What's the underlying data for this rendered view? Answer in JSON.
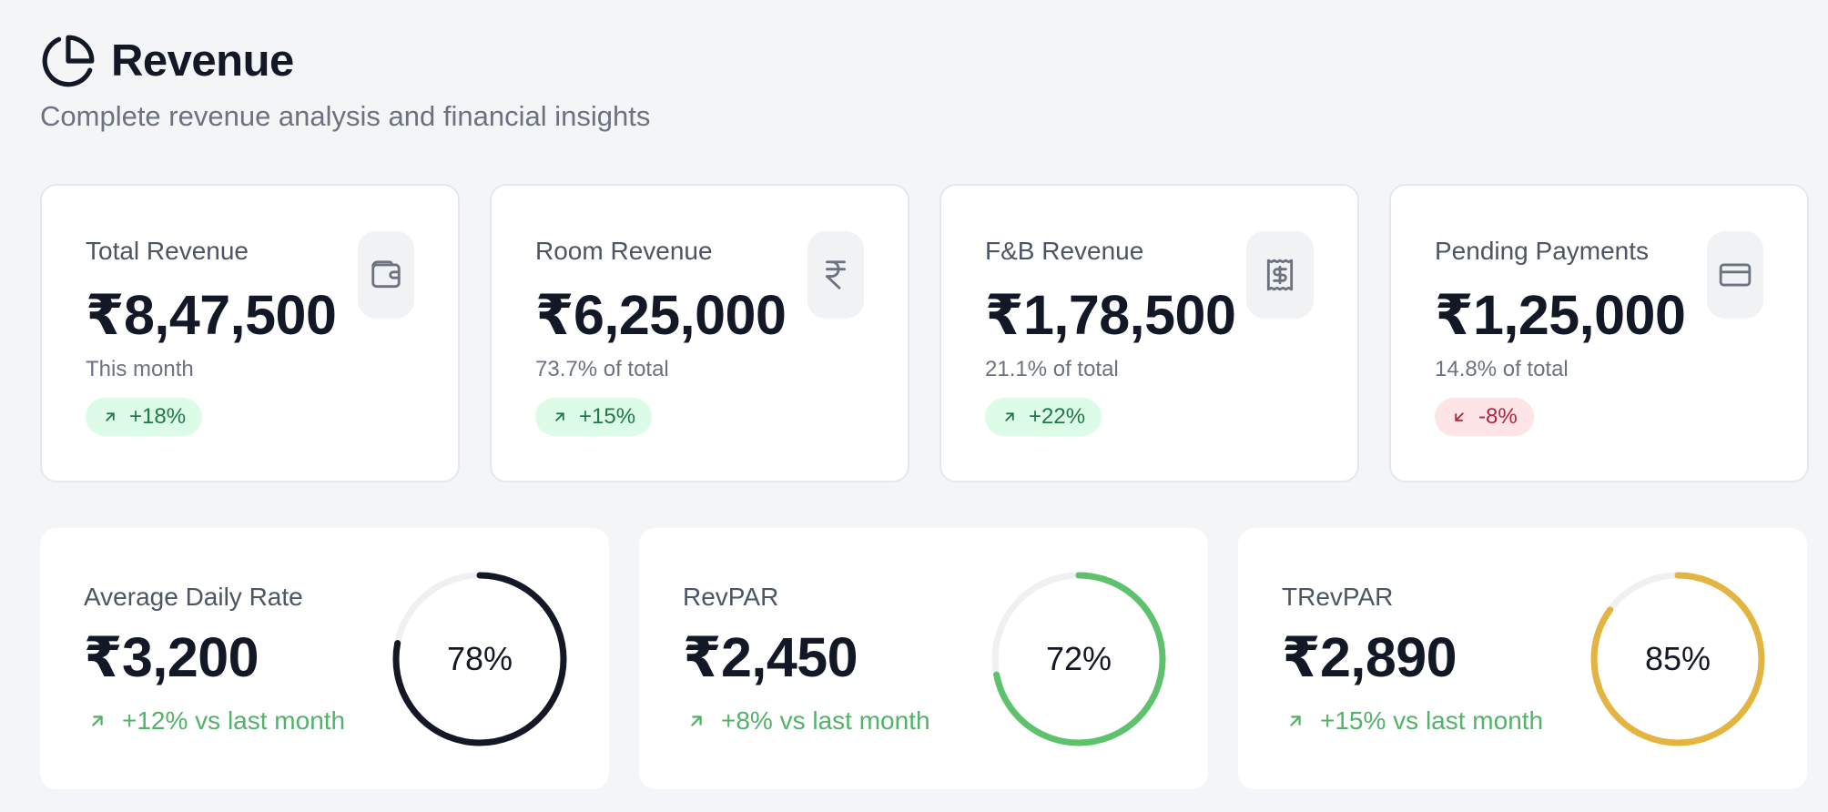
{
  "header": {
    "title": "Revenue",
    "subtitle": "Complete revenue analysis and financial insights",
    "icon": "pie-chart-icon"
  },
  "colors": {
    "up_bg": "#dcfce7",
    "up_text": "#1f7a45",
    "down_bg": "#fde4e6",
    "down_text": "#b4233a",
    "trend_green": "#52b26a"
  },
  "stats": [
    {
      "label": "Total Revenue",
      "value": "₹8,47,500",
      "note": "This month",
      "change": "+18%",
      "direction": "up",
      "icon": "wallet-icon"
    },
    {
      "label": "Room Revenue",
      "value": "₹6,25,000",
      "note": "73.7% of total",
      "change": "+15%",
      "direction": "up",
      "icon": "rupee-icon"
    },
    {
      "label": "F&B Revenue",
      "value": "₹1,78,500",
      "note": "21.1% of total",
      "change": "+22%",
      "direction": "up",
      "icon": "receipt-icon"
    },
    {
      "label": "Pending Payments",
      "value": "₹1,25,000",
      "note": "14.8% of total",
      "change": "-8%",
      "direction": "down",
      "icon": "credit-card-icon"
    }
  ],
  "metrics": [
    {
      "label": "Average Daily Rate",
      "value": "₹3,200",
      "trend": "+12% vs last month",
      "percent_label": "78%",
      "percent": 78,
      "ring_color": "#141826"
    },
    {
      "label": "RevPAR",
      "value": "₹2,450",
      "trend": "+8% vs last month",
      "percent_label": "72%",
      "percent": 72,
      "ring_color": "#5ec26d"
    },
    {
      "label": "TRevPAR",
      "value": "₹2,890",
      "trend": "+15% vs last month",
      "percent_label": "85%",
      "percent": 85,
      "ring_color": "#e3b43f"
    }
  ]
}
